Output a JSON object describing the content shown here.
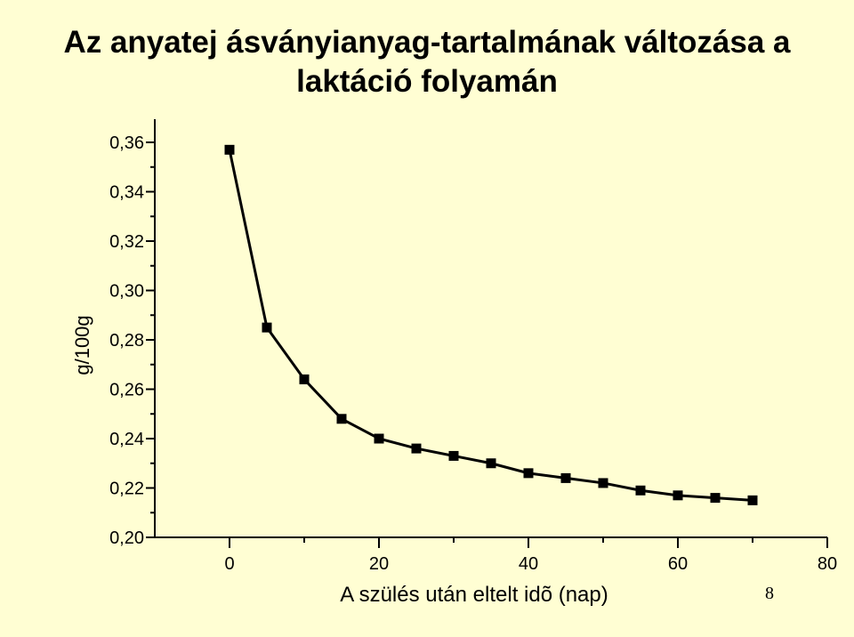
{
  "slide": {
    "title": "Az anyatej ásványianyag-tartalmának változása a laktáció folyamán",
    "page_number": "8"
  },
  "chart_data": {
    "type": "line",
    "title": "Az anyatej ásványianyag-tartalmának változása a laktáció folyamán",
    "xlabel": "A szülés után eltelt idõ (nap)",
    "ylabel": "g/100g",
    "xlim": [
      -10,
      80
    ],
    "ylim": [
      0.2,
      0.37
    ],
    "x_ticks": [
      0,
      20,
      40,
      60,
      80
    ],
    "x_tick_labels": [
      "0",
      "20",
      "40",
      "60",
      "80"
    ],
    "y_ticks": [
      0.2,
      0.22,
      0.24,
      0.26,
      0.28,
      0.3,
      0.32,
      0.34,
      0.36
    ],
    "y_tick_labels": [
      "0,20",
      "0,22",
      "0,24",
      "0,26",
      "0,28",
      "0,30",
      "0,32",
      "0,34",
      "0,36"
    ],
    "grid": false,
    "marker": "square",
    "series_color": "#000000",
    "series": [
      {
        "x": [
          0,
          5,
          10,
          15,
          20,
          25,
          30,
          35,
          40,
          45,
          50,
          55,
          60,
          65,
          70
        ],
        "values": [
          0.357,
          0.285,
          0.264,
          0.248,
          0.24,
          0.236,
          0.233,
          0.23,
          0.226,
          0.224,
          0.222,
          0.219,
          0.217,
          0.216,
          0.215
        ]
      }
    ]
  }
}
